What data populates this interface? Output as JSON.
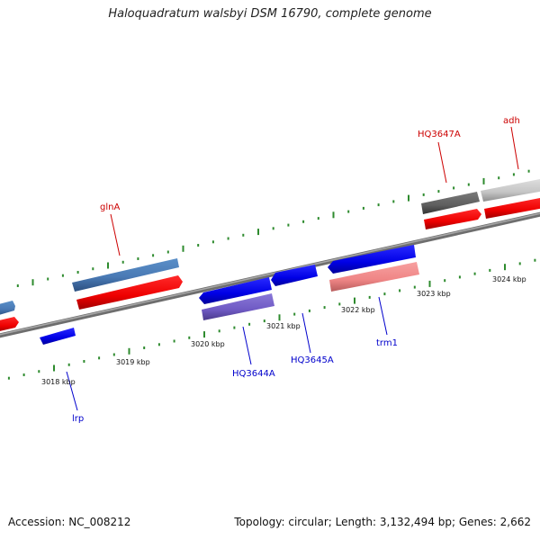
{
  "title": "Haloquadratum walsbyi DSM 16790, complete genome",
  "accession": "Accession: NC_008212",
  "topology": "Topology: circular; Length: 3,132,494 bp; Genes: 2,662",
  "kbp_labels": [
    {
      "text": "3018 kbp"
    },
    {
      "text": "3019 kbp"
    },
    {
      "text": "3020 kbp"
    },
    {
      "text": "3021 kbp"
    },
    {
      "text": "3022 kbp"
    },
    {
      "text": "3023 kbp"
    },
    {
      "text": "3024 kbp"
    }
  ],
  "gene_labels": [
    {
      "name": "lrp",
      "color": "#0000cc"
    },
    {
      "name": "glnA",
      "color": "#cc0000"
    },
    {
      "name": "HQ3644A",
      "color": "#0000cc"
    },
    {
      "name": "HQ3645A",
      "color": "#0000cc"
    },
    {
      "name": "trm1",
      "color": "#0000cc"
    },
    {
      "name": "HQ3647A",
      "color": "#cc0000"
    },
    {
      "name": "adh",
      "color": "#cc0000"
    }
  ],
  "colors": {
    "backbone": "#8c8c8c",
    "tick": "#2e8b2e",
    "forward_cds": "#ff0000",
    "reverse_cds": "#0000ee",
    "forward_label": "#cc0000",
    "reverse_label": "#0000cc"
  }
}
